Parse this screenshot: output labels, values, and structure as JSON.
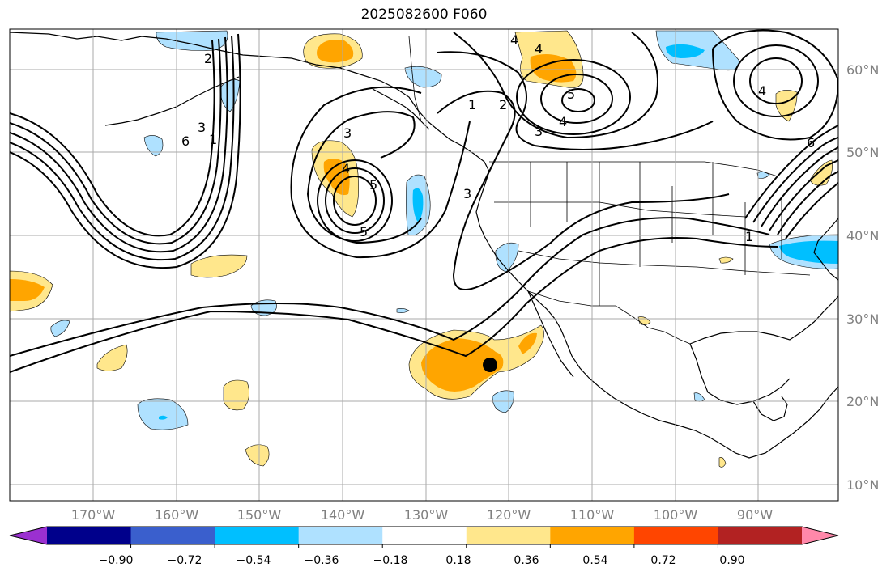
{
  "title": "2025082600 F060",
  "latitude_labels": [
    "60°N",
    "50°N",
    "40°N",
    "30°N",
    "20°N",
    "10°N"
  ],
  "longitude_labels": [
    "170°W",
    "160°W",
    "150°W",
    "140°W",
    "130°W",
    "120°W",
    "110°W",
    "100°W",
    "90°W"
  ],
  "colorbar": {
    "tick_labels": [
      "−0.90",
      "−0.72",
      "−0.54",
      "−0.36",
      "−0.18",
      "0.18",
      "0.36",
      "0.54",
      "0.72",
      "0.90"
    ],
    "colors": [
      "#9b30d0",
      "#00008b",
      "#3a5fcd",
      "#00bfff",
      "#afe1ff",
      "#ffffff",
      "#ffe78c",
      "#ffa500",
      "#ff4500",
      "#b22222",
      "#ff88aa"
    ]
  },
  "contour_labels": [
    "1",
    "2",
    "3",
    "4",
    "5",
    "6",
    "3",
    "4",
    "5",
    "1",
    "2",
    "3",
    "4",
    "5",
    "3",
    "4",
    "1",
    "6",
    "4"
  ],
  "colors": {
    "positive_light": "#ffe78c",
    "positive_mid": "#ffa500",
    "negative_light": "#afe1ff",
    "negative_mid": "#00bfff",
    "contour": "#000000",
    "grid": "#aaaaaa",
    "tick_text": "#808080"
  }
}
